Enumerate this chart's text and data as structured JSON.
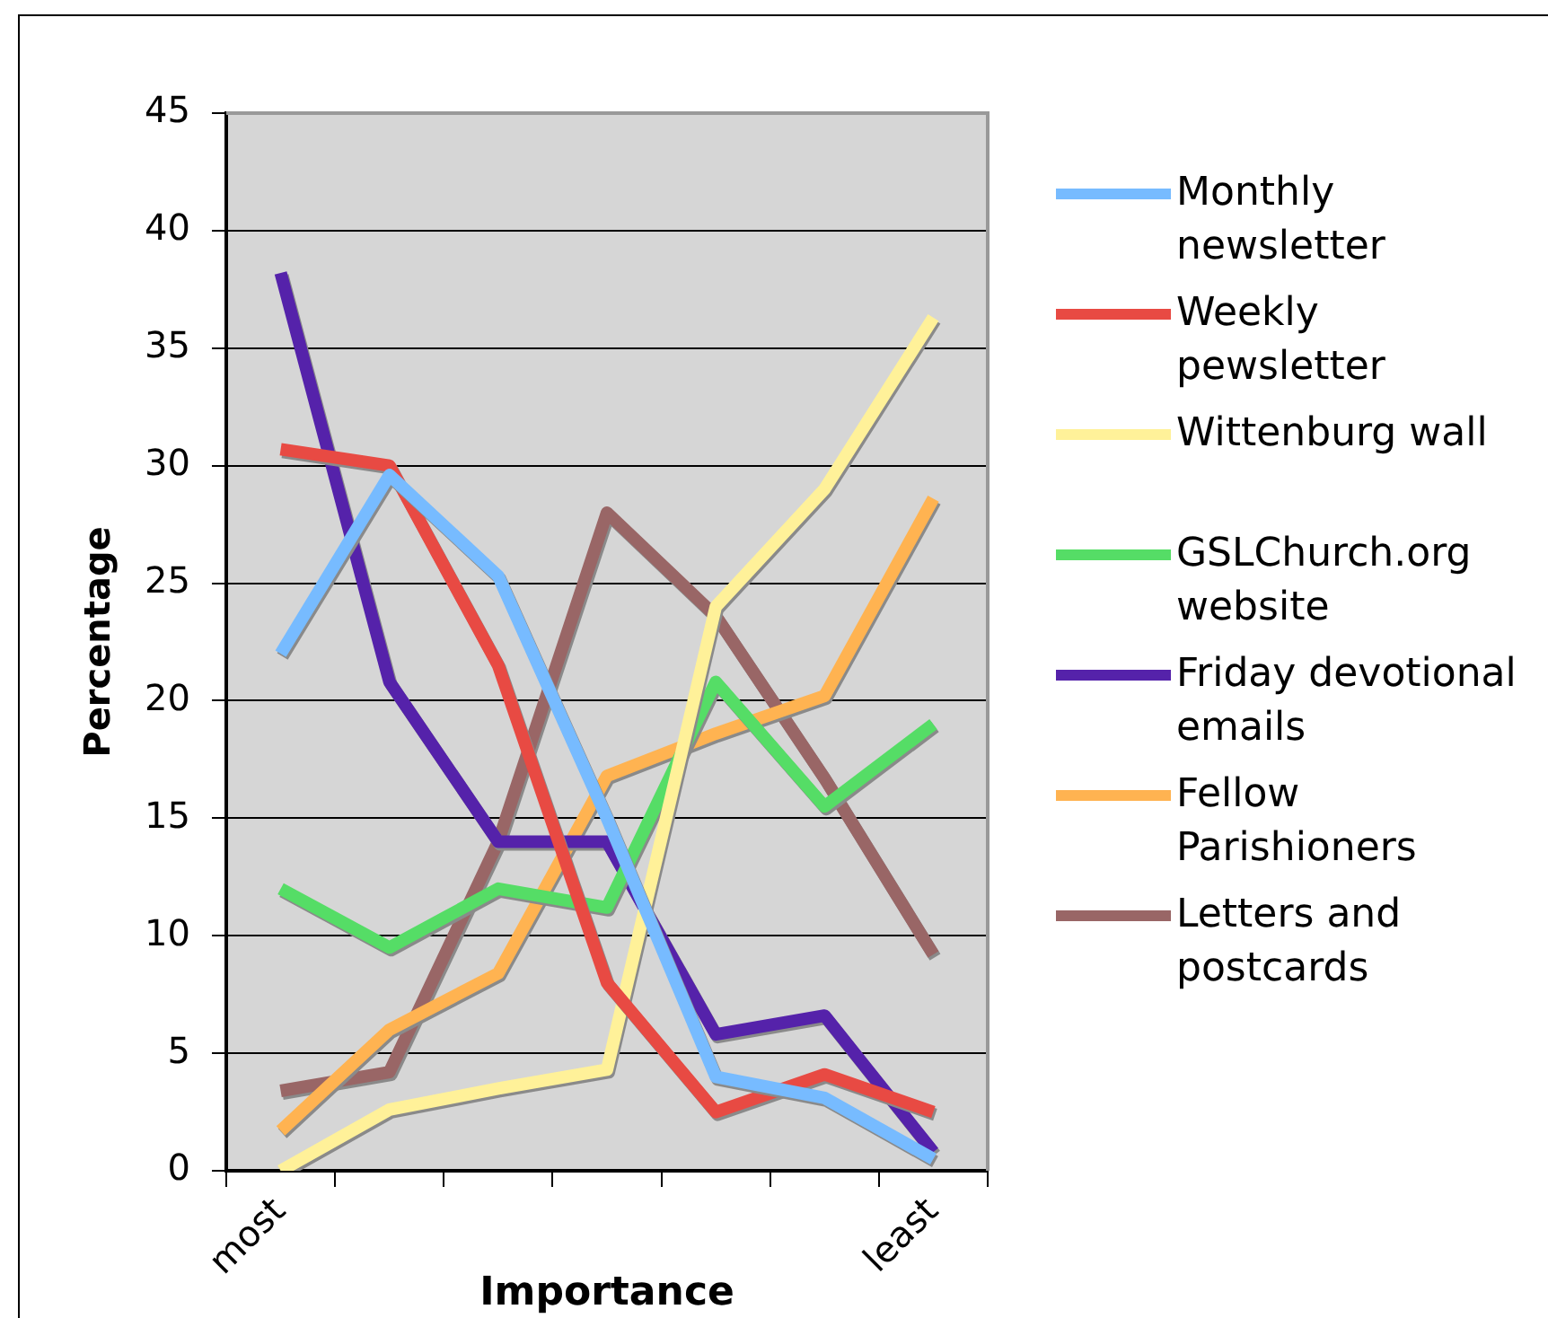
{
  "chart_data": {
    "type": "line",
    "xlabel": "Importance",
    "ylabel": "Percentage",
    "categories": [
      "most",
      null,
      null,
      null,
      null,
      null,
      "least"
    ],
    "ylim": [
      0,
      45
    ],
    "yticks": [
      0,
      5,
      10,
      15,
      20,
      25,
      30,
      35,
      40,
      45
    ],
    "grid": "y",
    "legend": "right",
    "marker": "none",
    "line_style": "solid",
    "series": [
      {
        "name": "Monthly newsletter",
        "color": "#77bbff",
        "values": [
          22,
          29.6,
          25.3,
          15,
          4,
          3.1,
          0.5
        ]
      },
      {
        "name": "Weekly pewsletter",
        "color": "#e84a43",
        "values": [
          30.7,
          30,
          21.5,
          8,
          2.5,
          4.1,
          2.5
        ]
      },
      {
        "name": "Wittenburg wall",
        "color": "#fff199",
        "values": [
          0,
          2.6,
          3.5,
          4.3,
          24,
          29,
          36.3
        ]
      },
      {
        "name": "GSLChurch.org website",
        "color": "#55dd66",
        "values": [
          12,
          9.5,
          12,
          11.2,
          20.8,
          15.5,
          19
        ]
      },
      {
        "name": "Friday devotional emails",
        "color": "#5522aa",
        "values": [
          38.2,
          20.8,
          14,
          14,
          5.8,
          6.6,
          0.8
        ]
      },
      {
        "name": "Fellow Parishioners",
        "color": "#ffb351",
        "values": [
          1.7,
          6,
          8.4,
          16.8,
          18.6,
          20.2,
          28.6
        ]
      },
      {
        "name": "Letters and postcards",
        "color": "#996666",
        "values": [
          3.4,
          4.2,
          14,
          28,
          23.6,
          16.7,
          9.2
        ]
      }
    ]
  }
}
